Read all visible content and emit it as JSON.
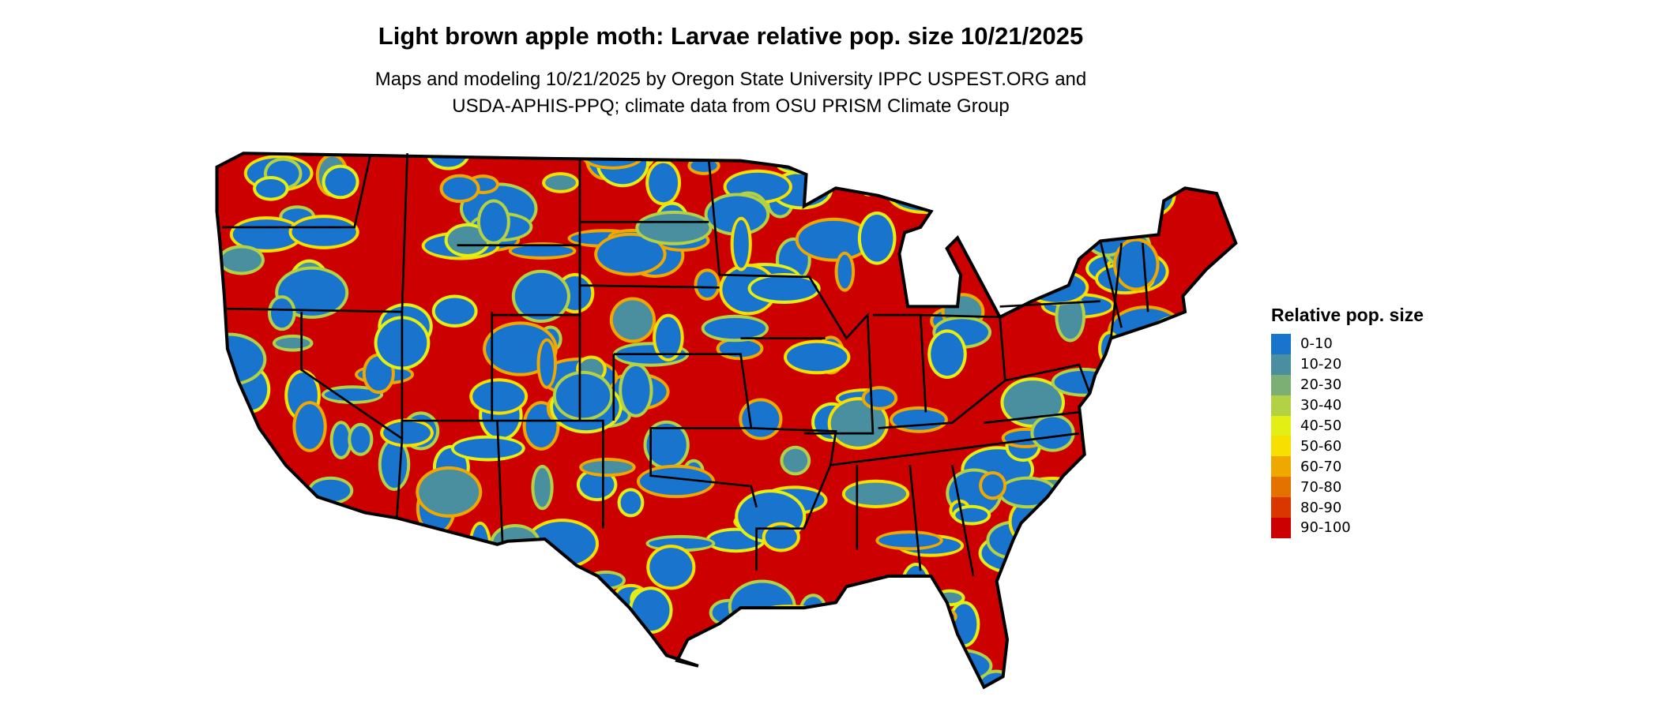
{
  "title": "Light brown apple moth: Larvae relative pop. size 10/21/2025",
  "subtitle_line1": "Maps and modeling 10/21/2025 by Oregon State University IPPC USPEST.ORG and",
  "subtitle_line2": "USDA-APHIS-PPQ; climate data from OSU PRISM Climate Group",
  "legend": {
    "title": "Relative pop. size",
    "items": [
      {
        "label": "0-10",
        "color": "#1874CD"
      },
      {
        "label": "10-20",
        "color": "#4A8FA0"
      },
      {
        "label": "20-30",
        "color": "#7BAF74"
      },
      {
        "label": "30-40",
        "color": "#B2D144"
      },
      {
        "label": "40-50",
        "color": "#E3EE15"
      },
      {
        "label": "50-60",
        "color": "#F7DF00"
      },
      {
        "label": "60-70",
        "color": "#EFA800"
      },
      {
        "label": "70-80",
        "color": "#E47200"
      },
      {
        "label": "80-90",
        "color": "#DA3700"
      },
      {
        "label": "90-100",
        "color": "#CD0000"
      }
    ]
  },
  "map": {
    "region": "Contiguous United States",
    "border_color": "#000000",
    "dominant_color": "#CD0000"
  }
}
